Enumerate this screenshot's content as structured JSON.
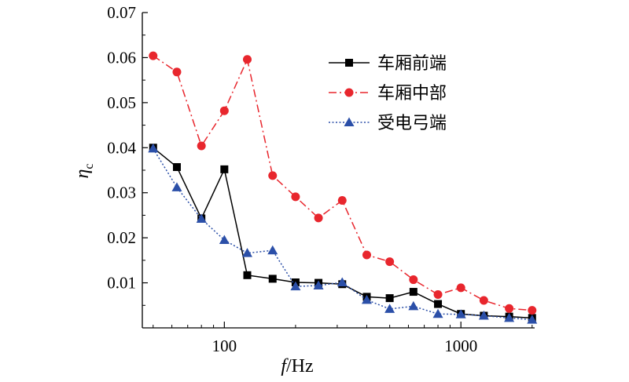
{
  "chart_data": {
    "type": "line",
    "x_scale": "log",
    "x": [
      50,
      63,
      80,
      100,
      125,
      160,
      200,
      250,
      315,
      400,
      500,
      630,
      800,
      1000,
      1250,
      1600,
      2000
    ],
    "xlim": [
      45,
      2050
    ],
    "ylim": [
      0,
      0.07
    ],
    "xticks": [
      100,
      1000
    ],
    "xtick_labels": [
      "100",
      "1000"
    ],
    "yticks": [
      0.01,
      0.02,
      0.03,
      0.04,
      0.05,
      0.06,
      0.07
    ],
    "ytick_labels": [
      "0.01",
      "0.02",
      "0.03",
      "0.04",
      "0.05",
      "0.06",
      "0.07"
    ],
    "ylabel_main": "η",
    "ylabel_sub": "c",
    "xlabel_italic": "f",
    "xlabel_rest": "/Hz",
    "legend_position": "top-right",
    "grid": false,
    "series": [
      {
        "name": "车厢前端",
        "color": "#000000",
        "line_style": "solid",
        "marker": "square",
        "values": [
          0.04,
          0.0357,
          0.0243,
          0.0352,
          0.0117,
          0.0109,
          0.0101,
          0.01,
          0.0097,
          0.0069,
          0.0066,
          0.008,
          0.0053,
          0.0031,
          0.0027,
          0.0025,
          0.0022
        ]
      },
      {
        "name": "车厢中部",
        "color": "#e8262d",
        "line_style": "dashdot",
        "marker": "circle",
        "values": [
          0.0604,
          0.0568,
          0.0404,
          0.0482,
          0.0596,
          0.0338,
          0.0291,
          0.0244,
          0.0283,
          0.0162,
          0.0147,
          0.0107,
          0.0074,
          0.0089,
          0.0061,
          0.0043,
          0.0039
        ]
      },
      {
        "name": "受电弓端",
        "color": "#2b4fa8",
        "line_style": "dotted",
        "marker": "triangle",
        "values": [
          0.0398,
          0.0312,
          0.0242,
          0.0195,
          0.0166,
          0.0172,
          0.0092,
          0.0094,
          0.0101,
          0.0062,
          0.0042,
          0.0048,
          0.0031,
          0.003,
          0.0027,
          0.0022,
          0.0018
        ]
      }
    ]
  }
}
